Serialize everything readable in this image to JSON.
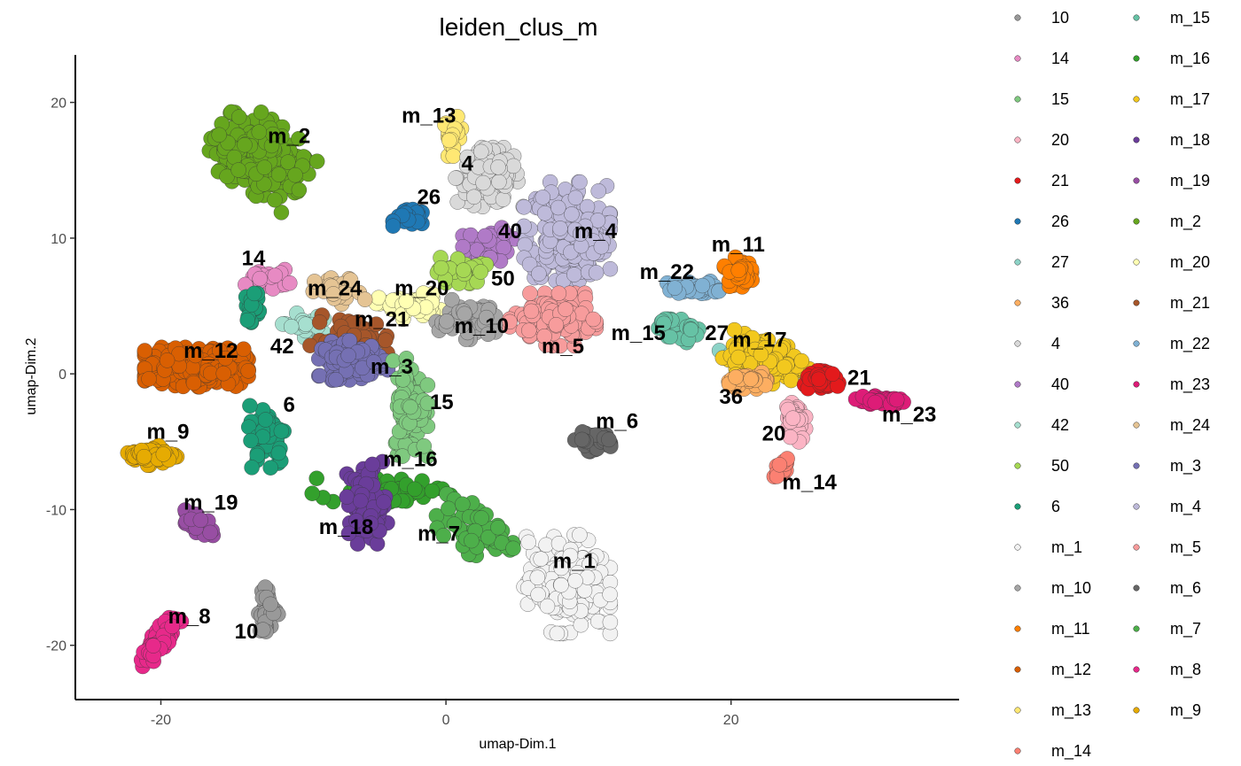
{
  "chart_data": {
    "type": "scatter",
    "title": "leiden_clus_m",
    "xlabel": "umap-Dim.1",
    "ylabel": "umap-Dim.2",
    "xlim": [
      -26,
      36
    ],
    "ylim": [
      -24,
      23.5
    ],
    "x_ticks": [
      -20,
      0,
      20
    ],
    "y_ticks": [
      -20,
      -10,
      0,
      10,
      20
    ],
    "grid": false,
    "legend_position": "right",
    "legend": [
      {
        "name": "10",
        "color": "#999999"
      },
      {
        "name": "14",
        "color": "#E78AC3"
      },
      {
        "name": "15",
        "color": "#7FC97F"
      },
      {
        "name": "20",
        "color": "#FBB4C4"
      },
      {
        "name": "21",
        "color": "#E31A1C"
      },
      {
        "name": "26",
        "color": "#1F78B4"
      },
      {
        "name": "27",
        "color": "#8DD3C7"
      },
      {
        "name": "36",
        "color": "#FDAE61"
      },
      {
        "name": "4",
        "color": "#D9D9D9"
      },
      {
        "name": "40",
        "color": "#B07AC7"
      },
      {
        "name": "42",
        "color": "#A6DFCF"
      },
      {
        "name": "50",
        "color": "#A6D854"
      },
      {
        "name": "6",
        "color": "#1B9E77"
      },
      {
        "name": "m_1",
        "color": "#F2F2F2"
      },
      {
        "name": "m_10",
        "color": "#A6A6A6"
      },
      {
        "name": "m_11",
        "color": "#FF7F00"
      },
      {
        "name": "m_12",
        "color": "#D95F02"
      },
      {
        "name": "m_13",
        "color": "#FFE873"
      },
      {
        "name": "m_14",
        "color": "#FB8072"
      },
      {
        "name": "m_15",
        "color": "#66C2A5"
      },
      {
        "name": "m_16",
        "color": "#33A02C"
      },
      {
        "name": "m_17",
        "color": "#F2C81E"
      },
      {
        "name": "m_18",
        "color": "#6A3D9A"
      },
      {
        "name": "m_19",
        "color": "#984EA3"
      },
      {
        "name": "m_2",
        "color": "#66A61E"
      },
      {
        "name": "m_20",
        "color": "#FFFFB3"
      },
      {
        "name": "m_21",
        "color": "#A6562A"
      },
      {
        "name": "m_22",
        "color": "#80B1D3"
      },
      {
        "name": "m_23",
        "color": "#DD1C77"
      },
      {
        "name": "m_24",
        "color": "#E5C494"
      },
      {
        "name": "m_3",
        "color": "#7570B3"
      },
      {
        "name": "m_4",
        "color": "#BEBADA"
      },
      {
        "name": "m_5",
        "color": "#F79C9C"
      },
      {
        "name": "m_6",
        "color": "#666666"
      },
      {
        "name": "m_7",
        "color": "#4DAF4A"
      },
      {
        "name": "m_8",
        "color": "#E7298A"
      },
      {
        "name": "m_9",
        "color": "#E6AB02"
      }
    ],
    "clusters": [
      {
        "name": "m_2",
        "color": "#66A61E",
        "cx": -13,
        "cy": 16,
        "sx": 3.0,
        "sy": 2.2,
        "angle": -37,
        "n": 260
      },
      {
        "name": "m_13",
        "color": "#FFE873",
        "cx": 0.5,
        "cy": 17.5,
        "sx": 0.6,
        "sy": 1.2,
        "angle": 0,
        "n": 25
      },
      {
        "name": "4",
        "color": "#D9D9D9",
        "cx": 3,
        "cy": 14.5,
        "sx": 2.0,
        "sy": 1.8,
        "angle": 0,
        "n": 120
      },
      {
        "name": "26",
        "color": "#1F78B4",
        "cx": -2.5,
        "cy": 11.5,
        "sx": 1.0,
        "sy": 0.5,
        "angle": 0,
        "n": 40
      },
      {
        "name": "40",
        "color": "#B07AC7",
        "cx": 3,
        "cy": 9.5,
        "sx": 1.5,
        "sy": 1.2,
        "angle": 0,
        "n": 40
      },
      {
        "name": "m_4",
        "color": "#BEBADA",
        "cx": 8.5,
        "cy": 10.5,
        "sx": 2.5,
        "sy": 3.0,
        "angle": 0,
        "n": 300
      },
      {
        "name": "50",
        "color": "#A6D854",
        "cx": 1,
        "cy": 7.5,
        "sx": 1.5,
        "sy": 1.0,
        "angle": 0,
        "n": 30
      },
      {
        "name": "m_20",
        "color": "#FFFFB3",
        "cx": -2.5,
        "cy": 5.0,
        "sx": 2.0,
        "sy": 0.8,
        "angle": 0,
        "n": 50
      },
      {
        "name": "m_24",
        "color": "#E5C494",
        "cx": -7.5,
        "cy": 6.0,
        "sx": 1.5,
        "sy": 1.0,
        "angle": 0,
        "n": 25
      },
      {
        "name": "14",
        "color": "#E78AC3",
        "cx": -12.5,
        "cy": 7.0,
        "sx": 1.3,
        "sy": 0.6,
        "angle": 0,
        "n": 40
      },
      {
        "name": "6",
        "color": "#1B9E77",
        "cx": -13.5,
        "cy": 5.0,
        "sx": 0.5,
        "sy": 1.0,
        "angle": 0,
        "n": 25
      },
      {
        "name": "42",
        "color": "#A6DFCF",
        "cx": -10,
        "cy": 3.5,
        "sx": 1.2,
        "sy": 0.8,
        "angle": 0,
        "n": 30
      },
      {
        "name": "m_21",
        "color": "#A6562A",
        "cx": -6.5,
        "cy": 2.5,
        "sx": 2.5,
        "sy": 1.5,
        "angle": 0,
        "n": 60
      },
      {
        "name": "m_3",
        "color": "#7570B3",
        "cx": -6.5,
        "cy": 1.0,
        "sx": 2.0,
        "sy": 1.2,
        "angle": 0,
        "n": 100
      },
      {
        "name": "m_10",
        "color": "#A6A6A6",
        "cx": 1.5,
        "cy": 4.0,
        "sx": 1.8,
        "sy": 1.2,
        "angle": 0,
        "n": 60
      },
      {
        "name": "m_5",
        "color": "#F79C9C",
        "cx": 7.5,
        "cy": 4.0,
        "sx": 2.5,
        "sy": 1.6,
        "angle": 0,
        "n": 160
      },
      {
        "name": "m_12",
        "color": "#D95F02",
        "cx": -17.5,
        "cy": 0.5,
        "sx": 3.0,
        "sy": 1.2,
        "angle": 0,
        "n": 280
      },
      {
        "name": "m_9",
        "color": "#E6AB02",
        "cx": -20.5,
        "cy": -6.0,
        "sx": 1.5,
        "sy": 0.6,
        "angle": 0,
        "n": 60
      },
      {
        "name": "6",
        "color": "#1B9E77",
        "cx": -12.5,
        "cy": -4.5,
        "sx": 1.2,
        "sy": 2.0,
        "angle": 0,
        "n": 60
      },
      {
        "name": "15",
        "color": "#7FC97F",
        "cx": -2.5,
        "cy": -2.5,
        "sx": 1.0,
        "sy": 3.0,
        "angle": 0,
        "n": 110
      },
      {
        "name": "m_6",
        "color": "#666666",
        "cx": 10.5,
        "cy": -5.0,
        "sx": 1.2,
        "sy": 0.6,
        "angle": 0,
        "n": 40
      },
      {
        "name": "m_16",
        "color": "#33A02C",
        "cx": -4.5,
        "cy": -8.5,
        "sx": 4.0,
        "sy": 1.0,
        "angle": -5,
        "n": 60
      },
      {
        "name": "m_18",
        "color": "#6A3D9A",
        "cx": -5.5,
        "cy": -9.5,
        "sx": 1.2,
        "sy": 2.5,
        "angle": 0,
        "n": 80
      },
      {
        "name": "m_19",
        "color": "#984EA3",
        "cx": -17.5,
        "cy": -11.0,
        "sx": 1.2,
        "sy": 0.6,
        "angle": -30,
        "n": 40
      },
      {
        "name": "m_7",
        "color": "#4DAF4A",
        "cx": 2.0,
        "cy": -11.5,
        "sx": 2.5,
        "sy": 1.5,
        "angle": -20,
        "n": 60
      },
      {
        "name": "m_1",
        "color": "#F2F2F2",
        "cx": 8.5,
        "cy": -15.5,
        "sx": 2.5,
        "sy": 3.0,
        "angle": 0,
        "n": 220
      },
      {
        "name": "m_8",
        "color": "#E7298A",
        "cx": -20.0,
        "cy": -19.5,
        "sx": 2.0,
        "sy": 0.5,
        "angle": 55,
        "n": 80
      },
      {
        "name": "10",
        "color": "#999999",
        "cx": -12.5,
        "cy": -17.5,
        "sx": 0.6,
        "sy": 1.5,
        "angle": 0,
        "n": 40
      },
      {
        "name": "m_22",
        "color": "#80B1D3",
        "cx": 17.5,
        "cy": 6.3,
        "sx": 1.8,
        "sy": 0.5,
        "angle": 0,
        "n": 40
      },
      {
        "name": "m_11",
        "color": "#FF7F00",
        "cx": 20.5,
        "cy": 7.5,
        "sx": 0.8,
        "sy": 0.9,
        "angle": 0,
        "n": 40
      },
      {
        "name": "m_15",
        "color": "#66C2A5",
        "cx": 16.0,
        "cy": 3.5,
        "sx": 1.4,
        "sy": 0.8,
        "angle": -20,
        "n": 30
      },
      {
        "name": "27",
        "color": "#8DD3C7",
        "cx": 21,
        "cy": 1.5,
        "sx": 1.5,
        "sy": 0.7,
        "angle": 0,
        "n": 30
      },
      {
        "name": "m_17",
        "color": "#F2C81E",
        "cx": 22.5,
        "cy": 1.0,
        "sx": 2.5,
        "sy": 1.3,
        "angle": -15,
        "n": 140
      },
      {
        "name": "36",
        "color": "#FDAE61",
        "cx": 21.5,
        "cy": -0.5,
        "sx": 1.5,
        "sy": 0.5,
        "angle": 0,
        "n": 40
      },
      {
        "name": "21",
        "color": "#E31A1C",
        "cx": 26.5,
        "cy": -0.5,
        "sx": 1.2,
        "sy": 0.6,
        "angle": 0,
        "n": 40
      },
      {
        "name": "m_23",
        "color": "#DD1C77",
        "cx": 30.5,
        "cy": -2.0,
        "sx": 1.8,
        "sy": 0.3,
        "angle": 0,
        "n": 50
      },
      {
        "name": "20",
        "color": "#FBB4C4",
        "cx": 24.5,
        "cy": -3.5,
        "sx": 0.6,
        "sy": 1.5,
        "angle": 0,
        "n": 40
      },
      {
        "name": "m_14",
        "color": "#FB8072",
        "cx": 23.5,
        "cy": -7.0,
        "sx": 0.6,
        "sy": 0.7,
        "angle": 0,
        "n": 15
      }
    ],
    "annotations": [
      {
        "text": "m_2",
        "x": -11.0,
        "y": 17.0
      },
      {
        "text": "m_13",
        "x": -1.2,
        "y": 18.5
      },
      {
        "text": "4",
        "x": 1.5,
        "y": 15.0
      },
      {
        "text": "26",
        "x": -1.2,
        "y": 12.5
      },
      {
        "text": "40",
        "x": 4.5,
        "y": 10.0
      },
      {
        "text": "m_4",
        "x": 10.5,
        "y": 10.0
      },
      {
        "text": "m_11",
        "x": 20.5,
        "y": 9.0
      },
      {
        "text": "14",
        "x": -13.5,
        "y": 8.0
      },
      {
        "text": "m_22",
        "x": 15.5,
        "y": 7.0
      },
      {
        "text": "50",
        "x": 4.0,
        "y": 6.5
      },
      {
        "text": "m_24",
        "x": -7.8,
        "y": 5.8
      },
      {
        "text": "m_20",
        "x": -1.7,
        "y": 5.8
      },
      {
        "text": "m_21",
        "x": -4.5,
        "y": 3.5
      },
      {
        "text": "m_10",
        "x": 2.5,
        "y": 3.0
      },
      {
        "text": "m_15",
        "x": 13.5,
        "y": 2.5
      },
      {
        "text": "27",
        "x": 19.0,
        "y": 2.5
      },
      {
        "text": "m_17",
        "x": 22.0,
        "y": 2.0
      },
      {
        "text": "m_5",
        "x": 8.2,
        "y": 1.5
      },
      {
        "text": "m_12",
        "x": -16.5,
        "y": 1.2
      },
      {
        "text": "42",
        "x": -11.5,
        "y": 1.5
      },
      {
        "text": "m_3",
        "x": -3.8,
        "y": 0.0
      },
      {
        "text": "21",
        "x": 29.0,
        "y": -0.8
      },
      {
        "text": "36",
        "x": 20.0,
        "y": -2.2
      },
      {
        "text": "15",
        "x": -0.3,
        "y": -2.6
      },
      {
        "text": "6",
        "x": -11.0,
        "y": -2.8
      },
      {
        "text": "m_23",
        "x": 32.5,
        "y": -3.5
      },
      {
        "text": "m_6",
        "x": 12.0,
        "y": -4.0
      },
      {
        "text": "m_9",
        "x": -19.5,
        "y": -4.8
      },
      {
        "text": "20",
        "x": 23.0,
        "y": -4.9
      },
      {
        "text": "m_16",
        "x": -2.5,
        "y": -6.8
      },
      {
        "text": "m_14",
        "x": 25.5,
        "y": -8.5
      },
      {
        "text": "m_19",
        "x": -16.5,
        "y": -10.0
      },
      {
        "text": "m_18",
        "x": -7.0,
        "y": -11.8
      },
      {
        "text": "m_7",
        "x": -0.5,
        "y": -12.3
      },
      {
        "text": "m_1",
        "x": 9.0,
        "y": -14.3
      },
      {
        "text": "m_8",
        "x": -18.0,
        "y": -18.4
      },
      {
        "text": "10",
        "x": -14.0,
        "y": -19.5
      }
    ]
  }
}
